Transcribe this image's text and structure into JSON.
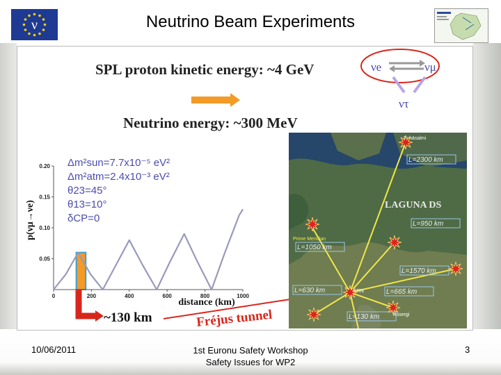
{
  "header": {
    "title": "Neutrino Beam Experiments",
    "eu_flag_letter": "ν"
  },
  "figure": {
    "spl_text": "SPL proton kinetic energy: ~4 GeV",
    "neutrino_energy_text": "Neutrino energy: ~300 MeV",
    "flavor_nu_e": "νe",
    "flavor_nu_mu": "νμ",
    "flavor_nu_tau": "ντ",
    "params": [
      "Δm²sun=7.7x10⁻⁵ eV²",
      "Δm²atm=2.4x10⁻³ eV²",
      "θ23=45°",
      "θ13=10°",
      "δCP=0"
    ],
    "ylabel": "p(νμ→νe)",
    "xlabel": "distance (km)",
    "distance_label": "~130 km",
    "frejus_label": "Fréjus tunnel",
    "map_title": "LAGUNA DS",
    "distances": [
      "L=2300 km",
      "L=950 km",
      "L=1050 km",
      "L=1570 km",
      "L=630 km",
      "L=665 km",
      "L=130 km"
    ],
    "map_labels": [
      "Pyhäsalmi",
      "Prime Meridian",
      "CERN",
      "Assergi"
    ]
  },
  "chart_data": {
    "type": "line",
    "title": "",
    "xlabel": "distance (km)",
    "ylabel": "p(νμ→νe)",
    "xlim": [
      0,
      1000
    ],
    "ylim": [
      0,
      0.2
    ],
    "x_ticks": [
      "0",
      "200",
      "400",
      "600",
      "800",
      "1000"
    ],
    "y_ticks": [
      "0.05",
      "0.10",
      "0.15",
      "0.20"
    ],
    "series": [
      {
        "x": [
          0,
          65,
          130,
          195,
          260,
          330,
          400,
          470,
          545,
          615,
          690,
          760,
          835,
          905,
          980,
          1000
        ],
        "y": [
          0,
          0.025,
          0.06,
          0.025,
          0,
          0.04,
          0.08,
          0.04,
          0,
          0.045,
          0.09,
          0.045,
          0,
          0.06,
          0.12,
          0.13
        ]
      }
    ],
    "highlight_range": [
      120,
      170
    ],
    "grid": false
  },
  "footer": {
    "date": "10/06/2011",
    "line1": "1st Euronu Safety Workshop",
    "line2": "Safety Issues for WP2",
    "page": "3"
  },
  "colors": {
    "eu_blue": "#1f3a93",
    "eu_star": "#f5d000",
    "orange": "#f39a27",
    "curve": "#9999bb",
    "red": "#d9261c",
    "map_yellow": "#f2e64a"
  }
}
